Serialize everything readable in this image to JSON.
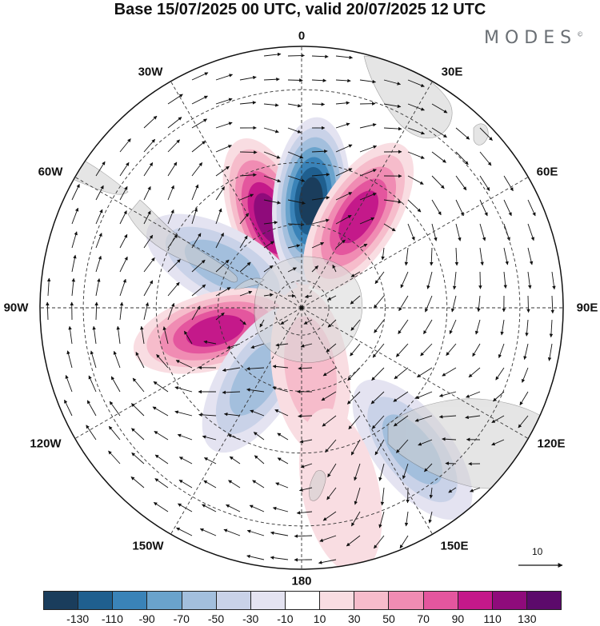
{
  "title": "Base 15/07/2025 00 UTC, valid 20/07/2025 12 UTC",
  "brand": {
    "name": "MODES",
    "mark": "©"
  },
  "map": {
    "projection": "south-polar-stereographic",
    "longitude_labels": [
      "0",
      "30E",
      "60E",
      "90E",
      "120E",
      "150E",
      "180",
      "150W",
      "120W",
      "90W",
      "60W",
      "30W"
    ],
    "reference_vector_label": "10",
    "colors": {
      "land": "#cfcfcf",
      "ice": "#e4e4e4",
      "graticule": "#333333"
    }
  },
  "colorbar": {
    "colors": [
      "#1a3d5c",
      "#1f5f8f",
      "#3a83b8",
      "#6aa3cc",
      "#a3bfdd",
      "#c9d2e8",
      "#e4e3f1",
      "#ffffff",
      "#f9dde2",
      "#f6bccb",
      "#f08cb3",
      "#e4569e",
      "#c4198a",
      "#8f0b7b",
      "#5c0a6b"
    ],
    "tick_labels": [
      "-130",
      "-110",
      "-90",
      "-70",
      "-50",
      "-30",
      "-10",
      "10",
      "30",
      "50",
      "70",
      "90",
      "110",
      "130"
    ]
  },
  "anomaly_centers": [
    {
      "lon": -20,
      "lat": -56,
      "value": 110
    },
    {
      "lon": 5,
      "lat": -52,
      "value": -130
    },
    {
      "lon": 32,
      "lat": -52,
      "value": 100
    },
    {
      "lon": -62,
      "lat": -58,
      "value": -60
    },
    {
      "lon": -105,
      "lat": -58,
      "value": 95
    },
    {
      "lon": -148,
      "lat": -60,
      "value": -55
    },
    {
      "lon": 172,
      "lat": -67,
      "value": 40
    },
    {
      "lon": 142,
      "lat": -30,
      "value": -60
    },
    {
      "lon": 168,
      "lat": -28,
      "value": 20
    }
  ]
}
